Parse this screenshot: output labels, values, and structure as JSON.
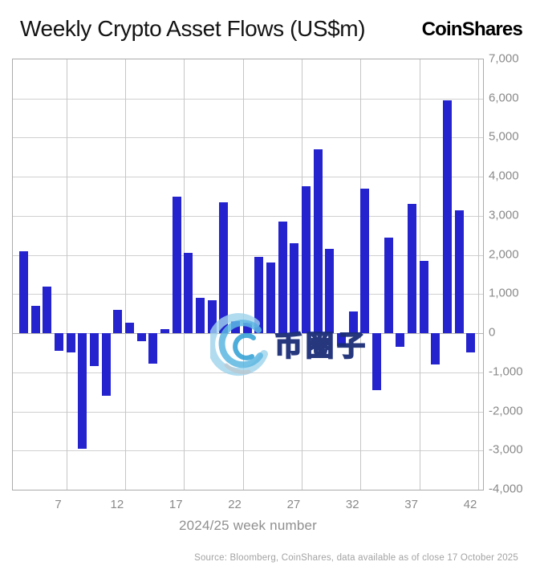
{
  "header": {
    "title": "Weekly Crypto Asset Flows (US$m)",
    "brand": "CoinShares"
  },
  "watermark": {
    "text": "币圈子"
  },
  "footer": {
    "source": "Source: Bloomberg, CoinShares, data available as of close 17 October 2025"
  },
  "chart_data": {
    "type": "bar",
    "title": "Weekly Crypto Asset Flows (US$m)",
    "xlabel": "2024/25 week number",
    "ylabel": "",
    "x": [
      4,
      5,
      6,
      7,
      8,
      9,
      10,
      11,
      12,
      13,
      14,
      15,
      16,
      17,
      18,
      19,
      20,
      21,
      22,
      23,
      24,
      25,
      26,
      27,
      28,
      29,
      30,
      31,
      32,
      33,
      34,
      35,
      36,
      37,
      38,
      39,
      40,
      41,
      42
    ],
    "values": [
      2100,
      700,
      1200,
      -450,
      -500,
      -2950,
      -850,
      -1600,
      600,
      260,
      -200,
      -780,
      100,
      3500,
      2050,
      900,
      850,
      3350,
      300,
      260,
      1950,
      1800,
      2850,
      2300,
      3750,
      4700,
      2150,
      -330,
      550,
      3700,
      -1450,
      2450,
      -350,
      3300,
      1850,
      -800,
      5950,
      3150,
      -500
    ],
    "xticks": [
      7,
      12,
      17,
      22,
      27,
      32,
      37,
      42
    ],
    "ylim": [
      -4000,
      7000
    ],
    "ytick_step": 1000,
    "grid": true,
    "legend": "none",
    "bar_color": "#2423ce"
  },
  "colors": {
    "bar": "#2423ce",
    "grid": "#d0d0d0",
    "zero_line": "#b2b2b2",
    "plot_border": "#ababab",
    "axis_text": "#8a8a8a",
    "title_text": "#141414",
    "source_text": "#a3a3a3",
    "watermark_blue_light": "#76c3e8",
    "watermark_blue_dark": "#2f9fd4"
  }
}
